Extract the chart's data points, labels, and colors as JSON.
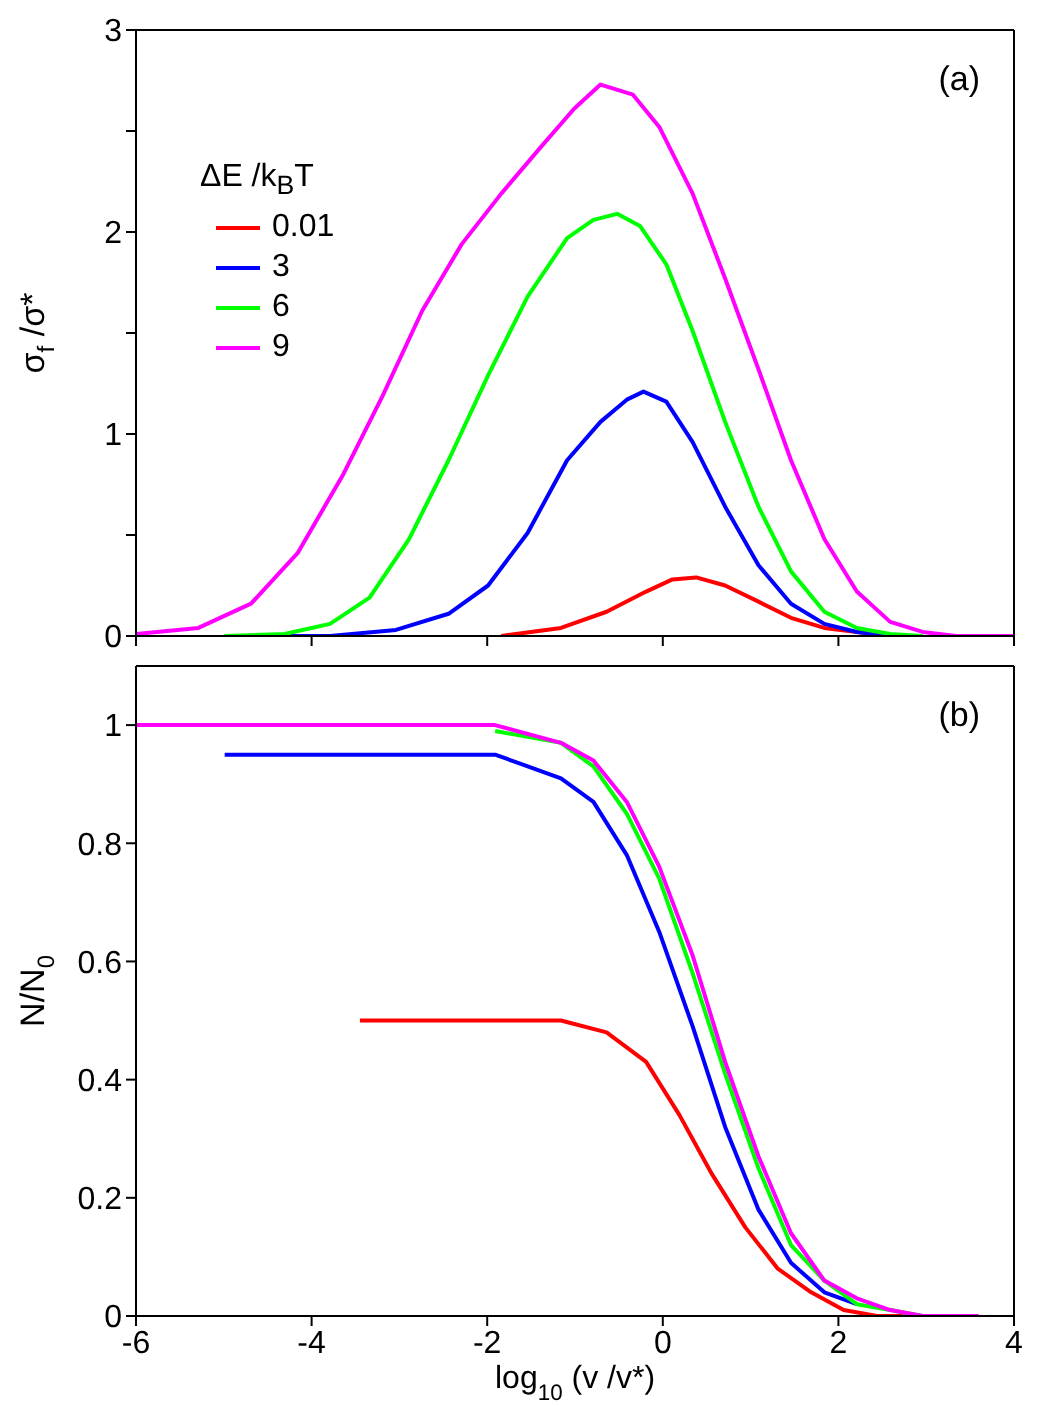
{
  "chart_data": [
    {
      "type": "line",
      "ylabel": "σ$_{f}$ /σ*",
      "legend_title": "ΔE /k$_{B}$T",
      "legend": "top left",
      "annotations": [
        "(a)"
      ],
      "marker": "none",
      "line_style": "solid",
      "tick_labels": "y",
      "xlim": [
        -6,
        4
      ],
      "xticks": [
        {
          "value": -6,
          "label": null
        },
        {
          "value": -4,
          "label": null
        },
        {
          "value": -2,
          "label": null
        },
        {
          "value": 0,
          "label": null
        },
        {
          "value": 2,
          "label": null
        },
        {
          "value": 4,
          "label": null
        }
      ],
      "ylim": [
        0,
        3
      ],
      "yticks": [
        0,
        {
          "value": 0.5,
          "label": null
        },
        1,
        {
          "value": 1.5,
          "label": null
        },
        2,
        {
          "value": 2.5,
          "label": null
        },
        3
      ],
      "series": [
        {
          "name": "0.01",
          "color": "#ff0000",
          "x": [
            -1.84,
            -1.16,
            -0.64,
            -0.19,
            0.11,
            0.38,
            0.71,
            1.09,
            1.46,
            1.84,
            2.21,
            2.59
          ],
          "values": [
            0,
            0.04,
            0.12,
            0.22,
            0.28,
            0.29,
            0.25,
            0.17,
            0.09,
            0.04,
            0.02,
            0
          ]
        },
        {
          "name": "3",
          "color": "#0000ff",
          "x": [
            -4.99,
            -3.79,
            -3.04,
            -2.44,
            -1.99,
            -1.54,
            -1.09,
            -0.71,
            -0.41,
            -0.22,
            0.04,
            0.34,
            0.71,
            1.09,
            1.46,
            1.84,
            2.21,
            2.59
          ],
          "values": [
            0,
            0,
            0.03,
            0.11,
            0.25,
            0.51,
            0.87,
            1.06,
            1.17,
            1.21,
            1.16,
            0.96,
            0.64,
            0.35,
            0.16,
            0.06,
            0.02,
            0
          ]
        },
        {
          "name": "6",
          "color": "#00ff00",
          "x": [
            -4.99,
            -4.31,
            -3.79,
            -3.34,
            -2.89,
            -2.44,
            -1.99,
            -1.54,
            -1.09,
            -0.79,
            -0.52,
            -0.26,
            0.04,
            0.34,
            0.71,
            1.09,
            1.46,
            1.84,
            2.21,
            2.59,
            2.96
          ],
          "values": [
            0,
            0.01,
            0.06,
            0.19,
            0.48,
            0.87,
            1.29,
            1.68,
            1.97,
            2.06,
            2.09,
            2.03,
            1.84,
            1.51,
            1.06,
            0.64,
            0.32,
            0.12,
            0.04,
            0.01,
            0
          ]
        },
        {
          "name": "9",
          "color": "#ff00ff",
          "x": [
            -6,
            -5.29,
            -4.69,
            -4.16,
            -3.64,
            -3.19,
            -2.74,
            -2.29,
            -1.84,
            -1.39,
            -1.01,
            -0.71,
            -0.34,
            -0.04,
            0.34,
            0.71,
            1.09,
            1.46,
            1.84,
            2.21,
            2.59,
            2.96,
            3.34,
            4
          ],
          "values": [
            0.01,
            0.04,
            0.16,
            0.41,
            0.8,
            1.19,
            1.61,
            1.94,
            2.19,
            2.42,
            2.61,
            2.73,
            2.68,
            2.52,
            2.19,
            1.77,
            1.32,
            0.87,
            0.48,
            0.22,
            0.07,
            0.02,
            0,
            0
          ]
        }
      ]
    },
    {
      "type": "line",
      "xlabel": "log$_{10}$ (v /v*)",
      "ylabel": "N/N$_{0}$",
      "annotations": [
        "(b)"
      ],
      "marker": "none",
      "line_style": "solid",
      "xlim": [
        -6,
        4
      ],
      "xticks": [
        -6,
        -4,
        -2,
        0,
        2,
        4
      ],
      "ylim": [
        0,
        1.1
      ],
      "yticks": [
        0,
        0.2,
        0.4,
        0.6,
        0.8,
        1
      ],
      "series": [
        {
          "color": "#ff0000",
          "x": [
            -3.45,
            -2.29,
            -1.16,
            -0.64,
            -0.19,
            0.19,
            0.56,
            0.94,
            1.31,
            1.69,
            2.06,
            2.44,
            2.96
          ],
          "values": [
            0.5,
            0.5,
            0.5,
            0.48,
            0.43,
            0.34,
            0.24,
            0.15,
            0.08,
            0.04,
            0.01,
            0,
            0
          ]
        },
        {
          "color": "#0000ff",
          "x": [
            -4.99,
            -3.03,
            -1.91,
            -1.16,
            -0.79,
            -0.41,
            -0.04,
            0.34,
            0.71,
            1.09,
            1.46,
            1.84,
            2.21
          ],
          "values": [
            0.95,
            0.95,
            0.95,
            0.91,
            0.87,
            0.78,
            0.65,
            0.49,
            0.32,
            0.18,
            0.09,
            0.04,
            0.02
          ]
        },
        {
          "color": "#00ff00",
          "x": [
            -1.91,
            -1.16,
            -0.79,
            -0.41,
            -0.04,
            0.34,
            0.71,
            1.09,
            1.46,
            1.84,
            2.21,
            2.59,
            2.96
          ],
          "values": [
            0.99,
            0.97,
            0.93,
            0.85,
            0.74,
            0.58,
            0.41,
            0.25,
            0.12,
            0.06,
            0.02,
            0.01,
            0
          ]
        },
        {
          "color": "#ff00ff",
          "x": [
            -6,
            -3.03,
            -1.91,
            -1.16,
            -0.79,
            -0.41,
            -0.04,
            0.34,
            0.71,
            1.09,
            1.46,
            1.84,
            2.21,
            2.59,
            2.96,
            3.6
          ],
          "values": [
            1,
            1,
            1,
            0.97,
            0.94,
            0.87,
            0.76,
            0.61,
            0.43,
            0.27,
            0.14,
            0.06,
            0.03,
            0.01,
            0,
            0
          ]
        }
      ]
    }
  ]
}
